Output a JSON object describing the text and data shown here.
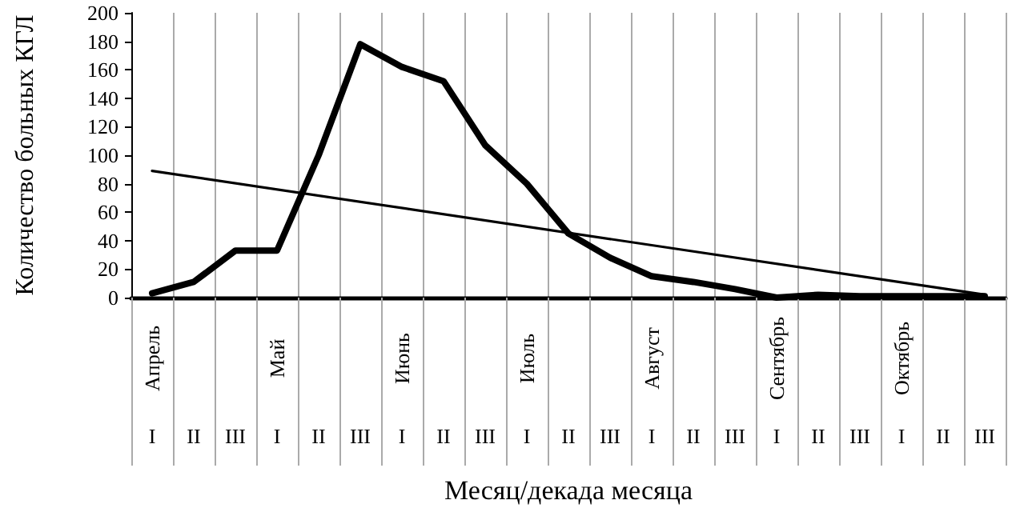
{
  "chart_data": {
    "type": "line",
    "xlabel": "Месяц/декада месяца",
    "ylabel": "Количество больных КГЛ",
    "categories": [
      "I",
      "II",
      "III",
      "I",
      "II",
      "III",
      "I",
      "II",
      "III",
      "I",
      "II",
      "III",
      "I",
      "II",
      "III",
      "I",
      "II",
      "III",
      "I",
      "II",
      "III"
    ],
    "annotations": [
      "Апрель",
      "Май",
      "Июнь",
      "Июль",
      "Август",
      "Сентябрь",
      "Октябрь"
    ],
    "series": [
      {
        "color": "#000000",
        "values": [
          3,
          11,
          33,
          33,
          100,
          178,
          162,
          152,
          107,
          80,
          45,
          28,
          15,
          11,
          6,
          0,
          2,
          1,
          1,
          1,
          1
        ]
      },
      {
        "color": "#000000",
        "values": [
          89,
          null,
          null,
          null,
          null,
          null,
          null,
          null,
          null,
          null,
          null,
          null,
          null,
          null,
          null,
          null,
          null,
          null,
          null,
          null,
          2
        ]
      }
    ],
    "ylim": [
      0,
      200
    ],
    "yticks": [
      0,
      20,
      40,
      60,
      80,
      100,
      120,
      140,
      160,
      180,
      200
    ],
    "grid": "x",
    "marker": "none",
    "line_style": "solid"
  }
}
